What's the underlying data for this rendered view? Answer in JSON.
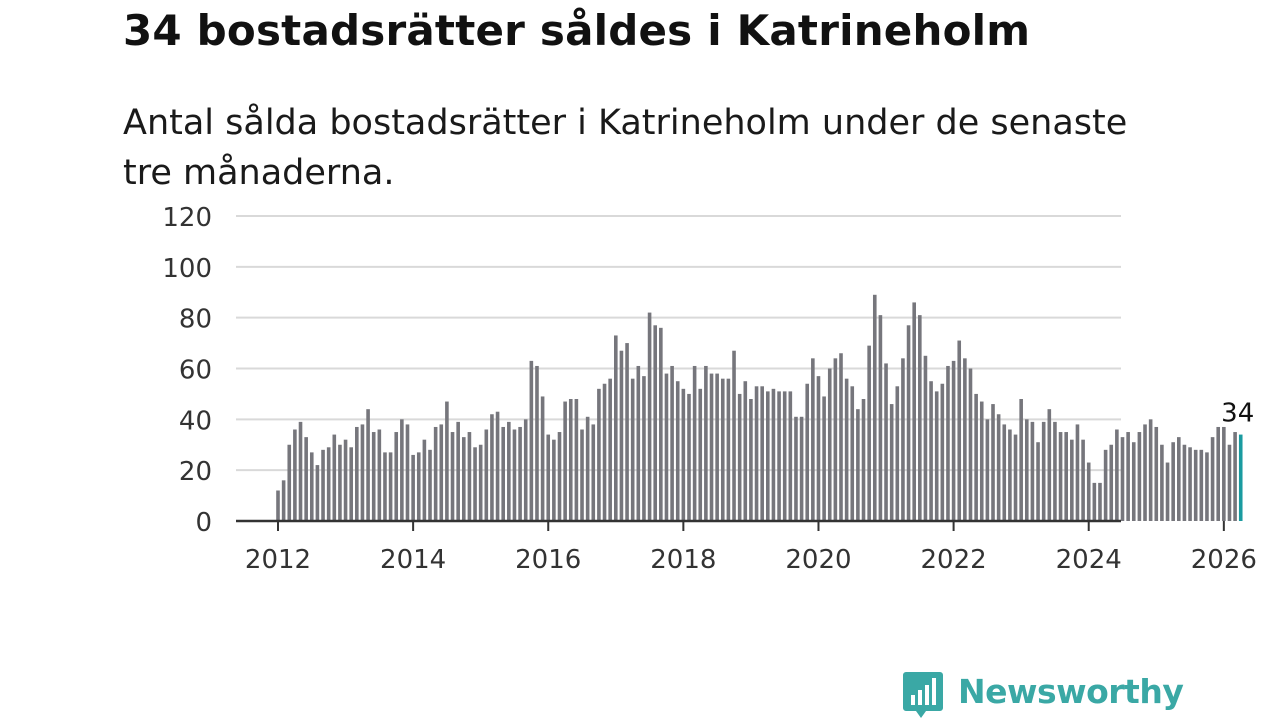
{
  "title": "34 bostadsrätter såldes i Katrineholm",
  "subtitle": "Antal sålda bostadsrätter i Katrineholm under de senaste tre månaderna.",
  "logo": {
    "text": "Newsworthy",
    "icon": "newsworthy-chart-bubble-icon"
  },
  "colors": {
    "bar": "#76767c",
    "highlight": "#1a9ba0",
    "brand": "#3aa8a5",
    "grid": "#d9d9d9",
    "axis": "#333333"
  },
  "chart_data": {
    "type": "bar",
    "title": "34 bostadsrätter såldes i Katrineholm",
    "xlabel": "",
    "ylabel": "",
    "ylim": [
      0,
      120
    ],
    "yticks": [
      "0",
      "20",
      "40",
      "60",
      "80",
      "100",
      "120"
    ],
    "xticks": [
      "2012",
      "2014",
      "2016",
      "2018",
      "2020",
      "2022",
      "2024",
      "2026"
    ],
    "start_date": "2012-01",
    "frequency": "monthly (rolling three-month total)",
    "values": [
      12,
      16,
      30,
      36,
      39,
      33,
      27,
      22,
      28,
      29,
      34,
      30,
      32,
      29,
      37,
      38,
      44,
      35,
      36,
      27,
      27,
      35,
      40,
      38,
      26,
      27,
      32,
      28,
      37,
      38,
      47,
      35,
      39,
      33,
      35,
      29,
      30,
      36,
      42,
      43,
      37,
      39,
      36,
      37,
      40,
      63,
      61,
      49,
      34,
      32,
      35,
      47,
      48,
      48,
      36,
      41,
      38,
      52,
      54,
      56,
      73,
      67,
      70,
      56,
      61,
      57,
      82,
      77,
      76,
      58,
      61,
      55,
      52,
      50,
      61,
      52,
      61,
      58,
      58,
      56,
      56,
      67,
      50,
      55,
      48,
      53,
      53,
      51,
      52,
      51,
      51,
      51,
      41,
      41,
      54,
      64,
      57,
      49,
      60,
      64,
      66,
      56,
      53,
      44,
      48,
      69,
      89,
      81,
      62,
      46,
      53,
      64,
      77,
      86,
      81,
      65,
      55,
      51,
      54,
      61,
      63,
      71,
      64,
      60,
      50,
      47,
      40,
      46,
      42,
      38,
      36,
      34,
      48,
      40,
      39,
      31,
      39,
      44,
      39,
      35,
      35,
      32,
      38,
      32,
      23,
      15,
      15,
      28,
      30,
      36,
      33,
      35,
      31,
      35,
      38,
      40,
      37,
      30,
      23,
      31,
      33,
      30,
      29,
      28,
      28,
      27,
      33,
      37,
      37,
      30,
      35,
      34
    ],
    "highlight_label": "34"
  }
}
